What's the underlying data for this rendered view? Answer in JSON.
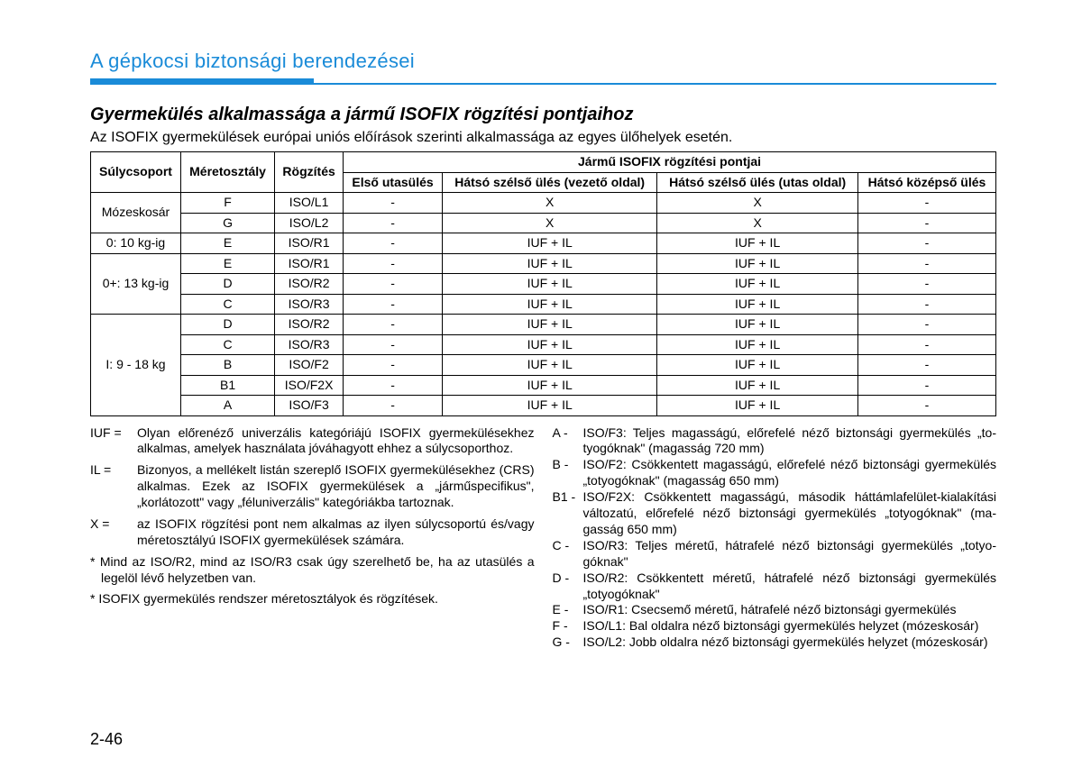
{
  "header": "A gépkocsi biztonsági berendezései",
  "title": "Gyermekülés alkalmassága a jármű ISOFIX rögzítési pontjaihoz",
  "subtitle": "Az ISOFIX gyermekülések európai uniós előírások szerinti alkalmassága az egyes ülőhelyek esetén.",
  "table": {
    "head_span": "Jármű ISOFIX rögzítési pontjai",
    "col_group": "Súlycsoport",
    "col_size": "Méretosztály",
    "col_fix": "Rögzítés",
    "col_front": "Első utasülés",
    "col_rear_driver": "Hátsó szélső ülés (vezető oldal)",
    "col_rear_pass": "Hátsó szélső ülés (utas oldal)",
    "col_rear_mid": "Hátsó középső ülés",
    "groups": [
      {
        "label": "Mózeskosár",
        "rows": [
          {
            "size": "F",
            "fix": "ISO/L1",
            "c1": "-",
            "c2": "X",
            "c3": "X",
            "c4": "-"
          },
          {
            "size": "G",
            "fix": "ISO/L2",
            "c1": "-",
            "c2": "X",
            "c3": "X",
            "c4": "-"
          }
        ]
      },
      {
        "label": "0: 10 kg-ig",
        "rows": [
          {
            "size": "E",
            "fix": "ISO/R1",
            "c1": "-",
            "c2": "IUF + IL",
            "c3": "IUF + IL",
            "c4": "-"
          }
        ]
      },
      {
        "label": "0+: 13 kg-ig",
        "rows": [
          {
            "size": "E",
            "fix": "ISO/R1",
            "c1": "-",
            "c2": "IUF + IL",
            "c3": "IUF + IL",
            "c4": "-"
          },
          {
            "size": "D",
            "fix": "ISO/R2",
            "c1": "-",
            "c2": "IUF + IL",
            "c3": "IUF + IL",
            "c4": "-"
          },
          {
            "size": "C",
            "fix": "ISO/R3",
            "c1": "-",
            "c2": "IUF + IL",
            "c3": "IUF + IL",
            "c4": "-"
          }
        ]
      },
      {
        "label": "I: 9 - 18 kg",
        "rows": [
          {
            "size": "D",
            "fix": "ISO/R2",
            "c1": "-",
            "c2": "IUF + IL",
            "c3": "IUF + IL",
            "c4": "-"
          },
          {
            "size": "C",
            "fix": "ISO/R3",
            "c1": "-",
            "c2": "IUF + IL",
            "c3": "IUF + IL",
            "c4": "-"
          },
          {
            "size": "B",
            "fix": "ISO/F2",
            "c1": "-",
            "c2": "IUF + IL",
            "c3": "IUF + IL",
            "c4": "-"
          },
          {
            "size": "B1",
            "fix": "ISO/F2X",
            "c1": "-",
            "c2": "IUF + IL",
            "c3": "IUF + IL",
            "c4": "-"
          },
          {
            "size": "A",
            "fix": "ISO/F3",
            "c1": "-",
            "c2": "IUF + IL",
            "c3": "IUF + IL",
            "c4": "-"
          }
        ]
      }
    ]
  },
  "defs": {
    "iuf_label": "IUF =",
    "iuf_text": "Olyan előrenéző univerzális kategóriájú ISOFIX gyermek­ülésekhez alkalmas, amelyek használata jóváhagyott ehhez a súlycsoporthoz.",
    "il_label": "IL =",
    "il_text": "Bizonyos, a mellékelt listán szereplő ISOFIX gyermekülé­sekhez (CRS) alkalmas. Ezek az ISOFIX gyermekülések a „járműspecifikus\", „korlátozott\" vagy „féluniverzális\" kate­góriákba tartoznak.",
    "x_label": "X =",
    "x_text": "az ISOFIX rögzítési pont nem alkalmas az ilyen súly­csoportú és/vagy méretosztályú ISOFIX gyermekülések számára.",
    "note1": "* Mind az ISO/R2, mind az ISO/R3 csak úgy szerelhető be, ha az utasülés a legelöl lévő helyzetben van.",
    "note2": "* ISOFIX gyermekülés rendszer méretosztályok és rögzítések."
  },
  "letters": {
    "a_k": "A -",
    "a_t": "ISO/F3: Teljes magasságú, előrefelé néző biztonsági gyermekülés „to­tyogóknak\" (magasság 720 mm)",
    "b_k": "B -",
    "b_t": "ISO/F2: Csökkentett magasságú, előrefelé néző biztonsági gyermek­ülés „totyogóknak\" (magasság 650 mm)",
    "b1_k": "B1 -",
    "b1_t": "ISO/F2X: Csökkentett magasságú, második háttámlafelület-kialakítási változatú, előrefelé néző biztonsági gyermekülés „totyogóknak\" (ma­gasság 650 mm)",
    "c_k": "C -",
    "c_t": "ISO/R3: Teljes méretű, hátrafelé néző biztonsági gyermekülés „totyo­góknak\"",
    "d_k": "D -",
    "d_t": "ISO/R2: Csökkentett méretű, hátrafelé néző biztonsági gyermekülés „totyogóknak\"",
    "e_k": "E -",
    "e_t": "ISO/R1: Csecsemő méretű, hátrafelé néző biztonsági gyermekülés",
    "f_k": "F -",
    "f_t": "ISO/L1: Bal oldalra néző biztonsági gyermekülés helyzet (mózeskosár)",
    "g_k": "G -",
    "g_t": "ISO/L2: Jobb oldalra néző biztonsági gyermekülés helyzet (mózes­kosár)"
  },
  "page_num": "2-46"
}
